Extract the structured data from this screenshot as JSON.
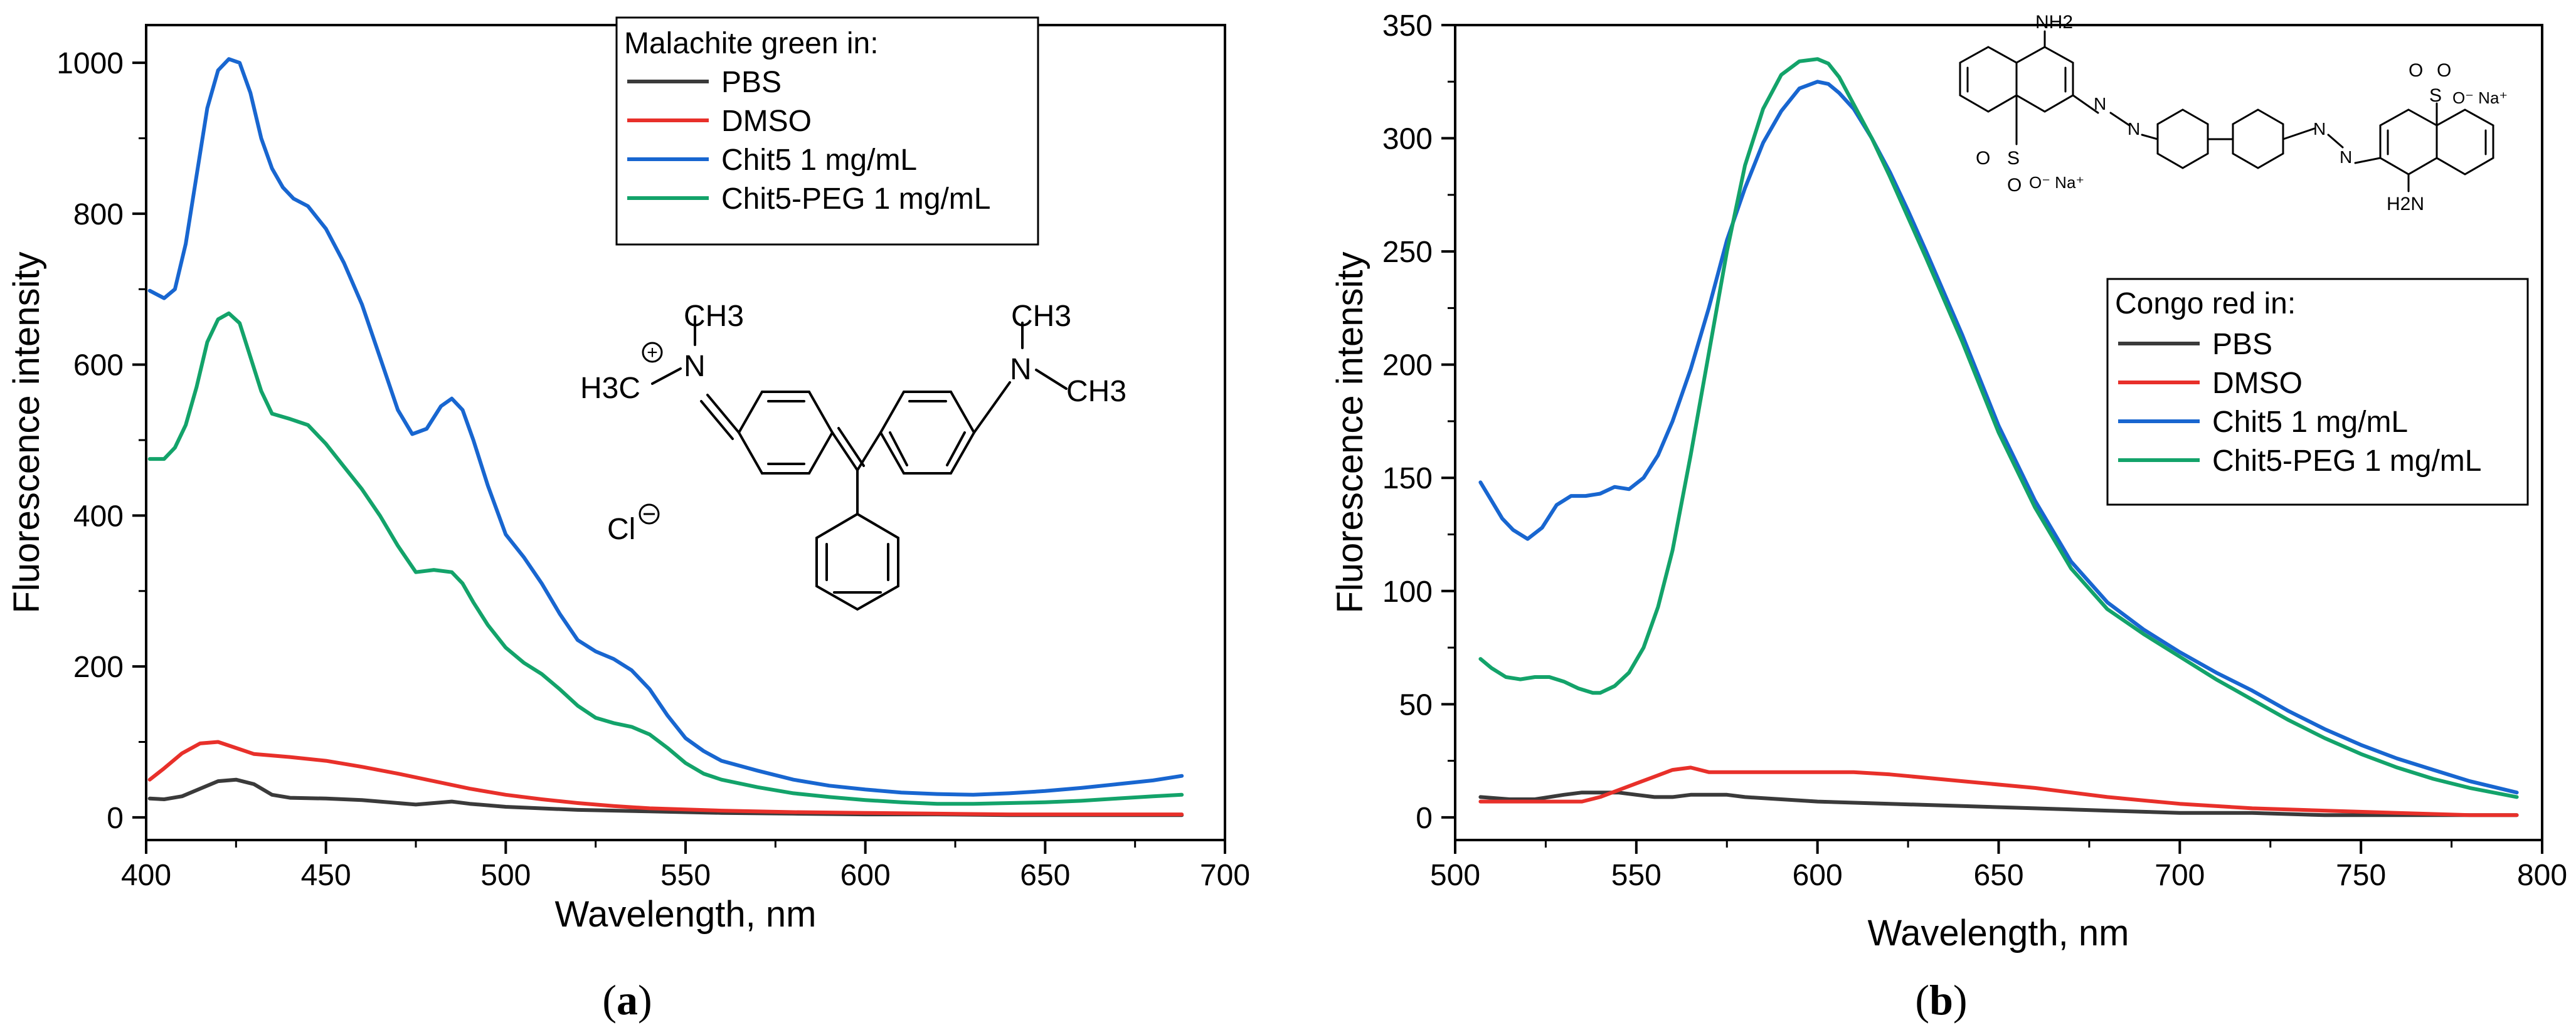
{
  "chart_data": [
    {
      "type": "line",
      "panel_label": "a",
      "xlabel": "Wavelength, nm",
      "ylabel": "Fluorescence intensity",
      "xlim": [
        400,
        700
      ],
      "ylim": [
        -30,
        1050
      ],
      "xticks": [
        400,
        450,
        500,
        550,
        600,
        650,
        700
      ],
      "yticks": [
        0,
        200,
        400,
        600,
        800,
        1000
      ],
      "legend_title": "Malachite green in:",
      "legend_position": "top-right",
      "structure_labels": {
        "methyl_top": "CH3",
        "methyl_left": "H3C",
        "amine_left": "N",
        "amine_right": "N",
        "methyl_right_top": "CH3",
        "methyl_right": "CH3",
        "counter_ion": "Cl"
      },
      "series": [
        {
          "name": "PBS",
          "color": "#3a3a3a",
          "x": [
            401,
            405,
            410,
            415,
            420,
            425,
            430,
            435,
            440,
            450,
            460,
            470,
            475,
            480,
            485,
            490,
            500,
            520,
            540,
            560,
            580,
            600,
            620,
            640,
            660,
            688
          ],
          "y": [
            25,
            24,
            28,
            38,
            48,
            50,
            44,
            30,
            26,
            25,
            23,
            19,
            17,
            19,
            21,
            18,
            14,
            10,
            8,
            6,
            5,
            4,
            4,
            3,
            3,
            3
          ]
        },
        {
          "name": "DMSO",
          "color": "#e8302a",
          "x": [
            401,
            405,
            410,
            415,
            420,
            425,
            430,
            440,
            450,
            460,
            470,
            480,
            490,
            500,
            510,
            520,
            530,
            540,
            560,
            580,
            600,
            620,
            640,
            660,
            688
          ],
          "y": [
            50,
            65,
            85,
            98,
            100,
            92,
            84,
            80,
            75,
            67,
            58,
            48,
            38,
            30,
            24,
            19,
            15,
            12,
            9,
            7,
            6,
            5,
            4,
            4,
            4
          ]
        },
        {
          "name": "Chit5 1 mg/mL",
          "color": "#1866d0",
          "x": [
            401,
            405,
            408,
            411,
            414,
            417,
            420,
            423,
            426,
            429,
            432,
            435,
            438,
            441,
            445,
            450,
            455,
            460,
            465,
            470,
            474,
            478,
            482,
            485,
            488,
            491,
            495,
            500,
            505,
            510,
            515,
            520,
            525,
            530,
            535,
            540,
            545,
            550,
            555,
            560,
            570,
            580,
            590,
            600,
            610,
            620,
            630,
            640,
            650,
            660,
            670,
            680,
            688
          ],
          "y": [
            698,
            688,
            700,
            760,
            850,
            940,
            990,
            1005,
            1000,
            960,
            900,
            860,
            835,
            820,
            810,
            780,
            735,
            680,
            610,
            540,
            508,
            515,
            545,
            555,
            540,
            500,
            440,
            375,
            345,
            310,
            270,
            235,
            220,
            210,
            195,
            170,
            135,
            105,
            88,
            75,
            62,
            50,
            42,
            37,
            33,
            31,
            30,
            32,
            35,
            39,
            44,
            49,
            55
          ]
        },
        {
          "name": "Chit5-PEG 1 mg/mL",
          "color": "#13a36a",
          "x": [
            401,
            405,
            408,
            411,
            414,
            417,
            420,
            423,
            426,
            429,
            432,
            435,
            440,
            445,
            450,
            455,
            460,
            465,
            470,
            475,
            480,
            485,
            488,
            491,
            495,
            500,
            505,
            510,
            515,
            520,
            525,
            530,
            535,
            540,
            545,
            550,
            555,
            560,
            570,
            580,
            590,
            600,
            610,
            620,
            630,
            640,
            650,
            660,
            670,
            680,
            688
          ],
          "y": [
            475,
            475,
            490,
            520,
            570,
            630,
            660,
            668,
            655,
            610,
            565,
            535,
            528,
            520,
            495,
            465,
            435,
            400,
            360,
            325,
            328,
            325,
            310,
            285,
            255,
            225,
            205,
            190,
            170,
            148,
            132,
            125,
            120,
            110,
            92,
            72,
            58,
            50,
            40,
            32,
            27,
            23,
            20,
            18,
            18,
            19,
            20,
            22,
            25,
            28,
            30
          ]
        }
      ]
    },
    {
      "type": "line",
      "panel_label": "b",
      "xlabel": "Wavelength, nm",
      "ylabel": "Fluorescence intensity",
      "xlim": [
        500,
        800
      ],
      "ylim": [
        -10,
        350
      ],
      "xticks": [
        500,
        550,
        600,
        650,
        700,
        750,
        800
      ],
      "yticks": [
        0,
        50,
        100,
        150,
        200,
        250,
        300,
        350
      ],
      "legend_title": "Congo red in:",
      "legend_position": "center-right",
      "structure_labels": {
        "nh2_top": "NH2",
        "nh2_bottom": "H2N",
        "sulfonate_right": "O⁻ Na⁺",
        "sulfonate_left": "O⁻ Na⁺",
        "sulfur": "S",
        "oxygen": "O",
        "azo": "N"
      },
      "series": [
        {
          "name": "PBS",
          "color": "#3a3a3a",
          "x": [
            507,
            515,
            522,
            530,
            535,
            540,
            545,
            550,
            555,
            560,
            565,
            570,
            575,
            580,
            590,
            600,
            620,
            640,
            660,
            680,
            700,
            720,
            740,
            760,
            780,
            793
          ],
          "y": [
            9,
            8,
            8,
            10,
            11,
            11,
            11,
            10,
            9,
            9,
            10,
            10,
            10,
            9,
            8,
            7,
            6,
            5,
            4,
            3,
            2,
            2,
            1,
            1,
            1,
            1
          ]
        },
        {
          "name": "DMSO",
          "color": "#e8302a",
          "x": [
            507,
            515,
            525,
            535,
            540,
            545,
            550,
            555,
            560,
            565,
            570,
            580,
            590,
            600,
            610,
            620,
            640,
            660,
            680,
            700,
            720,
            740,
            760,
            780,
            793
          ],
          "y": [
            7,
            7,
            7,
            7,
            9,
            12,
            15,
            18,
            21,
            22,
            20,
            20,
            20,
            20,
            20,
            19,
            16,
            13,
            9,
            6,
            4,
            3,
            2,
            1,
            1
          ]
        },
        {
          "name": "Chit5 1 mg/mL",
          "color": "#1866d0",
          "x": [
            507,
            510,
            513,
            516,
            520,
            524,
            528,
            532,
            536,
            540,
            544,
            548,
            552,
            556,
            560,
            565,
            570,
            575,
            580,
            585,
            590,
            595,
            600,
            603,
            606,
            610,
            615,
            620,
            625,
            630,
            640,
            650,
            660,
            670,
            680,
            690,
            700,
            710,
            720,
            730,
            740,
            750,
            760,
            770,
            780,
            793
          ],
          "y": [
            148,
            140,
            132,
            127,
            123,
            128,
            138,
            142,
            142,
            143,
            146,
            145,
            150,
            160,
            175,
            198,
            225,
            255,
            278,
            298,
            312,
            322,
            325,
            324,
            320,
            313,
            300,
            285,
            268,
            250,
            213,
            173,
            140,
            113,
            95,
            83,
            73,
            64,
            56,
            47,
            39,
            32,
            26,
            21,
            16,
            11
          ]
        },
        {
          "name": "Chit5-PEG 1 mg/mL",
          "color": "#13a36a",
          "x": [
            507,
            510,
            514,
            518,
            522,
            526,
            530,
            534,
            538,
            540,
            544,
            548,
            552,
            556,
            560,
            565,
            570,
            575,
            580,
            585,
            590,
            595,
            600,
            603,
            606,
            610,
            615,
            620,
            625,
            630,
            640,
            650,
            660,
            670,
            680,
            690,
            700,
            710,
            720,
            730,
            740,
            750,
            760,
            770,
            780,
            793
          ],
          "y": [
            70,
            66,
            62,
            61,
            62,
            62,
            60,
            57,
            55,
            55,
            58,
            64,
            75,
            93,
            118,
            160,
            205,
            250,
            288,
            313,
            328,
            334,
            335,
            333,
            327,
            315,
            300,
            283,
            265,
            247,
            210,
            170,
            137,
            110,
            92,
            81,
            71,
            61,
            52,
            43,
            35,
            28,
            22,
            17,
            13,
            9
          ]
        }
      ]
    }
  ]
}
